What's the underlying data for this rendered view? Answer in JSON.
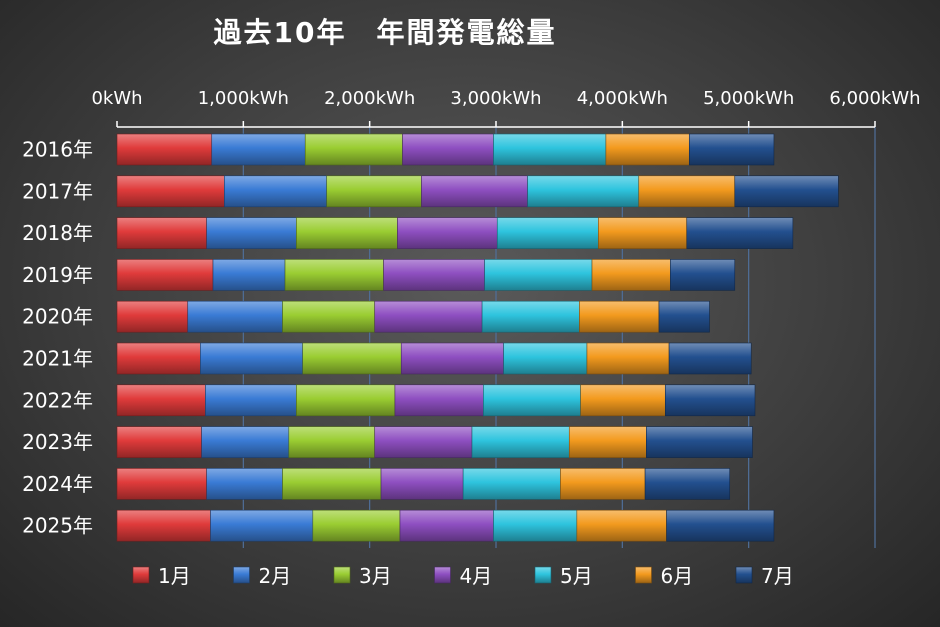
{
  "chart_data": {
    "type": "bar",
    "orientation": "horizontal",
    "stacked": true,
    "title": "過去10年　年間発電総量",
    "xlim": [
      0,
      6000
    ],
    "x_ticks": [
      0,
      1000,
      2000,
      3000,
      4000,
      5000,
      6000
    ],
    "x_tick_labels": [
      "0kWh",
      "1,000kWh",
      "2,000kWh",
      "3,000kWh",
      "4,000kWh",
      "5,000kWh",
      "6,000kWh"
    ],
    "x_axis_position": "top",
    "grid": true,
    "legend_position": "bottom",
    "categories": [
      "2016年",
      "2017年",
      "2018年",
      "2019年",
      "2020年",
      "2021年",
      "2022年",
      "2023年",
      "2024年",
      "2025年"
    ],
    "series": [
      {
        "name": "1月",
        "color": "#e03b3b",
        "values": [
          750,
          850,
          710,
          760,
          560,
          660,
          700,
          670,
          710,
          740
        ]
      },
      {
        "name": "2月",
        "color": "#3a7bd5",
        "values": [
          740,
          810,
          710,
          570,
          750,
          810,
          720,
          690,
          600,
          810
        ]
      },
      {
        "name": "3月",
        "color": "#9acd32",
        "values": [
          770,
          750,
          800,
          780,
          730,
          780,
          780,
          680,
          780,
          690
        ]
      },
      {
        "name": "4月",
        "color": "#8e4fc1",
        "values": [
          720,
          840,
          790,
          800,
          850,
          810,
          700,
          770,
          650,
          740
        ]
      },
      {
        "name": "5月",
        "color": "#2ec4de",
        "values": [
          890,
          880,
          800,
          850,
          770,
          660,
          770,
          770,
          770,
          660
        ]
      },
      {
        "name": "6月",
        "color": "#f39a1e",
        "values": [
          660,
          760,
          700,
          620,
          630,
          650,
          670,
          610,
          670,
          710
        ]
      },
      {
        "name": "7月",
        "color": "#23508f",
        "values": [
          670,
          820,
          840,
          510,
          400,
          650,
          710,
          840,
          670,
          850
        ]
      }
    ]
  }
}
